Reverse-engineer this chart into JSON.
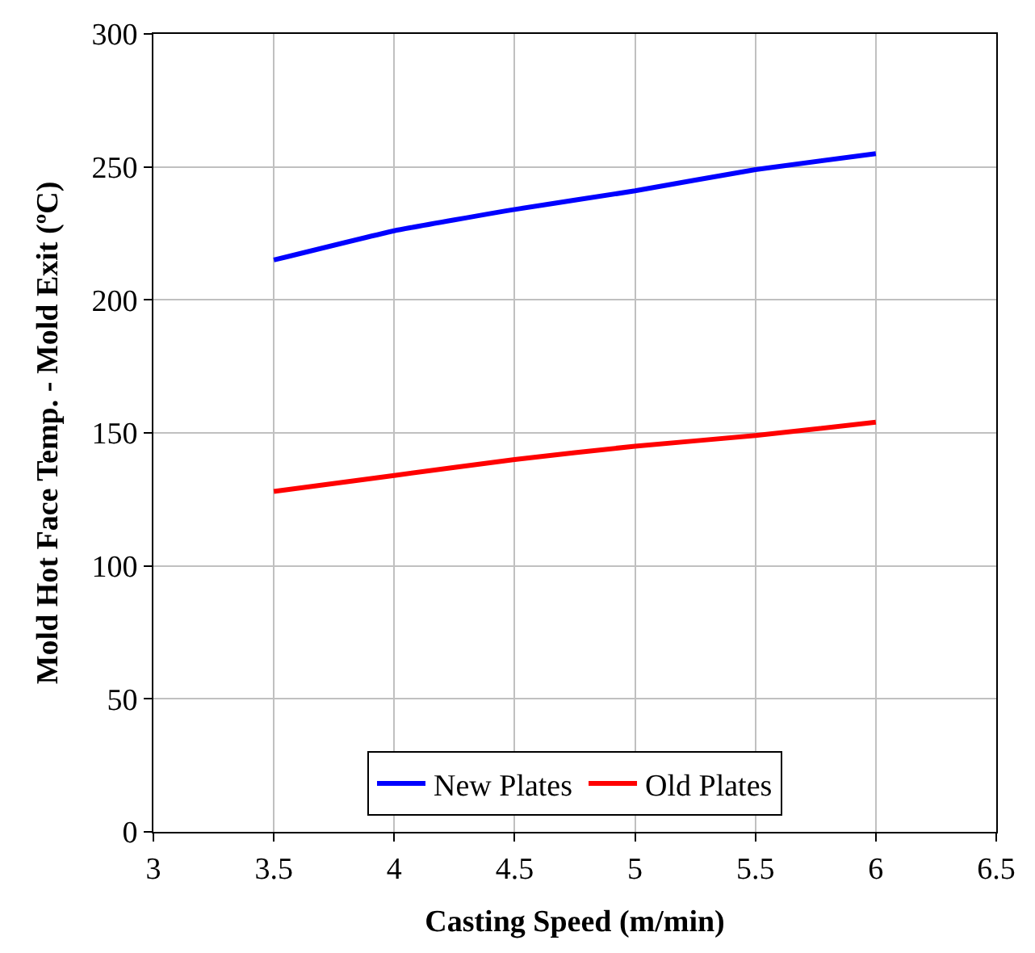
{
  "chart_data": {
    "type": "line",
    "xlabel": "Casting Speed (m/min)",
    "ylabel": "Mold Hot Face Temp. - Mold Exit (ºC)",
    "x": [
      3.5,
      4,
      4.5,
      5,
      5.5,
      6
    ],
    "series": [
      {
        "name": "New Plates",
        "color": "#0000ff",
        "values": [
          215,
          226,
          234,
          241,
          249,
          255
        ]
      },
      {
        "name": "Old Plates",
        "color": "#ff0000",
        "values": [
          128,
          134,
          140,
          145,
          149,
          154
        ]
      }
    ],
    "xlim": [
      3,
      6.5
    ],
    "xticks": [
      3,
      3.5,
      4,
      4.5,
      5,
      5.5,
      6,
      6.5
    ],
    "ylim": [
      0,
      300
    ],
    "yticks": [
      0,
      50,
      100,
      150,
      200,
      250,
      300
    ],
    "grid": true,
    "legend": "bottom",
    "marker": "none",
    "line_style": "solid"
  }
}
